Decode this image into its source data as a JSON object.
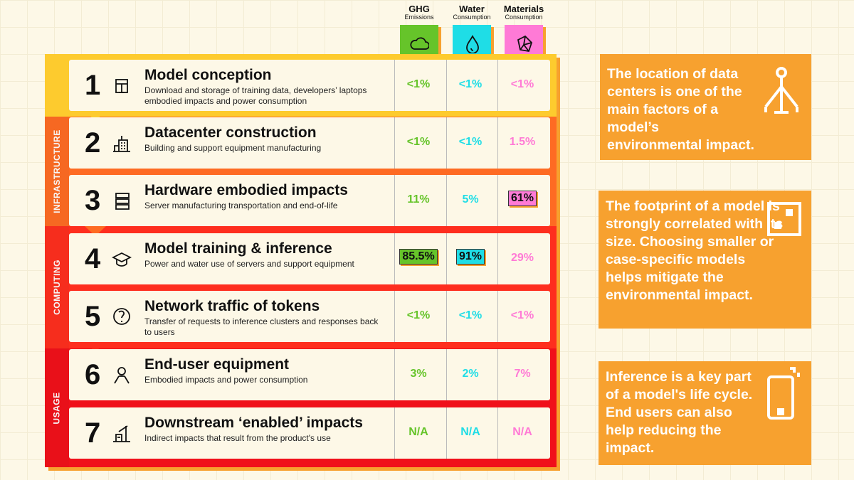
{
  "columns": [
    {
      "title": "GHG",
      "subtitle": "Emissions",
      "color": "#66c42a",
      "icon": "cloud-icon"
    },
    {
      "title": "Water",
      "subtitle": "Consumption",
      "color": "#1fdde6",
      "icon": "water-drop-icon"
    },
    {
      "title": "Materials",
      "subtitle": "Consumption",
      "color": "#ff7ad6",
      "icon": "rock-icon"
    }
  ],
  "groups": [
    {
      "label": "",
      "color": "#fdcb2e"
    },
    {
      "label": "INFRASTRUCTURE",
      "color": "#fe6b23"
    },
    {
      "label": "COMPUTING",
      "color": "#fe2e1e"
    },
    {
      "label": "USAGE",
      "color": "#f0101a"
    }
  ],
  "rows": [
    {
      "num": "1",
      "title": "Model conception",
      "desc": "Download and storage of training data, developers’ laptops embodied impacts and power consumption",
      "values": [
        "<1%",
        "<1%",
        "<1%"
      ],
      "highlight": [
        false,
        false,
        false
      ],
      "icon": "server-box-icon"
    },
    {
      "num": "2",
      "title": "Datacenter construction",
      "desc": "Building and support equipment manufacturing",
      "values": [
        "<1%",
        "<1%",
        "1.5%"
      ],
      "highlight": [
        false,
        false,
        false
      ],
      "icon": "building-icon"
    },
    {
      "num": "3",
      "title": "Hardware embodied impacts",
      "desc": "Server manufacturing transportation and end-of-life",
      "values": [
        "11%",
        "5%",
        "61%"
      ],
      "highlight": [
        false,
        false,
        true
      ],
      "icon": "server-rack-icon"
    },
    {
      "num": "4",
      "title": "Model training & inference",
      "desc": "Power and water use of servers and support equipment",
      "values": [
        "85.5%",
        "91%",
        "29%"
      ],
      "highlight": [
        true,
        true,
        false
      ],
      "icon": "graduation-cap-icon"
    },
    {
      "num": "5",
      "title": "Network traffic of tokens",
      "desc": "Transfer of requests to inference clusters and responses back to users",
      "values": [
        "<1%",
        "<1%",
        "<1%"
      ],
      "highlight": [
        false,
        false,
        false
      ],
      "icon": "globe-icon"
    },
    {
      "num": "6",
      "title": "End-user equipment",
      "desc": "Embodied impacts and power consumption",
      "values": [
        "3%",
        "2%",
        "7%"
      ],
      "highlight": [
        false,
        false,
        false
      ],
      "icon": "user-icon"
    },
    {
      "num": "7",
      "title": "Downstream ‘enabled’ impacts",
      "desc": "Indirect impacts that result from the product's use",
      "values": [
        "N/A",
        "N/A",
        "N/A"
      ],
      "highlight": [
        false,
        false,
        false
      ],
      "icon": "oil-pump-icon"
    }
  ],
  "notes": [
    {
      "text": "The location of data centers is one of the main factors of a model’s environmental impact.",
      "icon": "location-network-icon"
    },
    {
      "text": "The footprint of a model is strongly correlated with its size. Choosing smaller or case-specific models helps mitigate the environmental impact.",
      "icon": "dice-icon"
    },
    {
      "text": "Inference is a key part of a model's life cycle. End users can also help reducing the impact.",
      "icon": "smartphone-icon"
    }
  ]
}
